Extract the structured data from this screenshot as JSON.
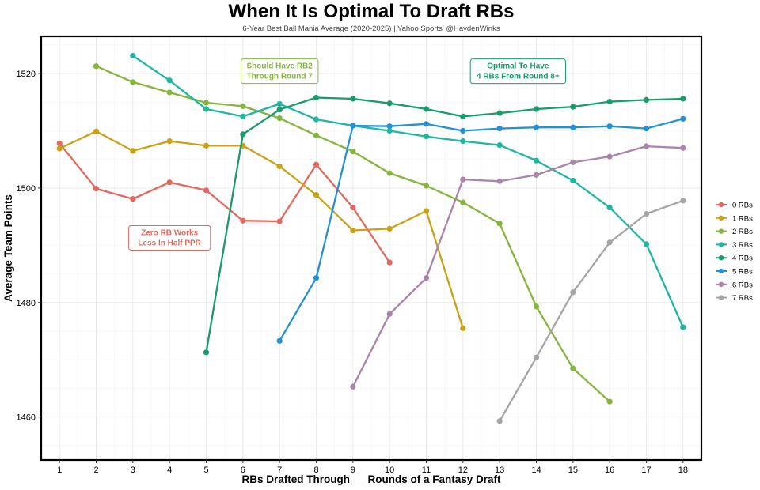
{
  "chart_data": {
    "type": "line",
    "title": "When It Is Optimal To Draft RBs",
    "subtitle": "6-Year Best Ball Mania Average (2020-2025) | Yahoo Sports' @HaydenWinks",
    "xlabel": "RBs Drafted Through __ Rounds of a Fantasy Draft",
    "ylabel": "Average Team Points",
    "xlim": [
      0.5,
      18.5
    ],
    "ylim": [
      1452.5,
      1526.5
    ],
    "x_ticks": [
      1,
      2,
      3,
      4,
      5,
      6,
      7,
      8,
      9,
      10,
      11,
      12,
      13,
      14,
      15,
      16,
      17,
      18
    ],
    "y_ticks": [
      1460,
      1480,
      1500,
      1520
    ],
    "grid": true,
    "legend_position": "right",
    "series": [
      {
        "name": "0 RBs",
        "color": "#e3685e",
        "x": [
          1,
          2,
          3,
          4,
          5,
          6,
          7,
          8,
          9,
          10
        ],
        "values": [
          1507.8,
          1499.9,
          1498.1,
          1501.0,
          1499.6,
          1494.3,
          1494.2,
          1504.1,
          1496.6,
          1487.0
        ]
      },
      {
        "name": "1 RBs",
        "color": "#c9a217",
        "x": [
          1,
          2,
          3,
          4,
          5,
          6,
          7,
          8,
          9,
          10,
          11,
          12
        ],
        "values": [
          1506.9,
          1509.9,
          1506.5,
          1508.2,
          1507.4,
          1507.4,
          1503.8,
          1498.8,
          1492.6,
          1492.9,
          1496.0,
          1475.5
        ]
      },
      {
        "name": "2 RBs",
        "color": "#86b53e",
        "x": [
          2,
          3,
          4,
          5,
          6,
          7,
          8,
          9,
          10,
          11,
          12,
          13,
          14,
          15,
          16
        ],
        "values": [
          1521.3,
          1518.5,
          1516.7,
          1514.9,
          1514.3,
          1512.2,
          1509.2,
          1506.4,
          1502.6,
          1500.4,
          1497.5,
          1493.8,
          1479.3,
          1468.5,
          1462.7
        ]
      },
      {
        "name": "3 RBs",
        "color": "#1fb7a0",
        "x": [
          3,
          4,
          5,
          6,
          7,
          8,
          9,
          10,
          11,
          12,
          13,
          14,
          15,
          16,
          17,
          18
        ],
        "values": [
          1523.1,
          1518.8,
          1513.8,
          1512.5,
          1514.7,
          1512.0,
          1510.9,
          1510.0,
          1509.0,
          1508.2,
          1507.5,
          1504.8,
          1501.3,
          1496.6,
          1490.2,
          1475.7
        ]
      },
      {
        "name": "4 RBs",
        "color": "#179c6a",
        "x": [
          5,
          6,
          7,
          8,
          9,
          10,
          11,
          12,
          13,
          14,
          15,
          16,
          17,
          18
        ],
        "values": [
          1471.3,
          1509.4,
          1513.7,
          1515.8,
          1515.6,
          1514.8,
          1513.8,
          1512.5,
          1513.1,
          1513.8,
          1514.2,
          1515.1,
          1515.4,
          1515.6
        ]
      },
      {
        "name": "5 RBs",
        "color": "#2691d0",
        "x": [
          7,
          8,
          9,
          10,
          11,
          12,
          13,
          14,
          15,
          16,
          17,
          18
        ],
        "values": [
          1473.3,
          1484.3,
          1510.9,
          1510.8,
          1511.2,
          1510.0,
          1510.4,
          1510.6,
          1510.6,
          1510.8,
          1510.4,
          1512.1
        ]
      },
      {
        "name": "6 RBs",
        "color": "#ab84a9",
        "x": [
          9,
          10,
          11,
          12,
          13,
          14,
          15,
          16,
          17,
          18
        ],
        "values": [
          1465.3,
          1478.0,
          1484.3,
          1501.5,
          1501.2,
          1502.3,
          1504.5,
          1505.5,
          1507.3,
          1507.0
        ]
      },
      {
        "name": "7 RBs",
        "color": "#a5a5a5",
        "x": [
          13,
          14,
          15,
          16,
          17,
          18
        ],
        "values": [
          1459.3,
          1470.4,
          1481.8,
          1490.5,
          1495.5,
          1497.8
        ]
      }
    ],
    "annotations": [
      {
        "id": "rb2",
        "lines": [
          "Should Have RB2",
          "Through Round 7"
        ],
        "x": 7,
        "y": 1520.4,
        "color": "#86b53e"
      },
      {
        "id": "optimal",
        "lines": [
          "Optimal To Have",
          "4 RBs From Round 8+"
        ],
        "x": 13.5,
        "y": 1520.4,
        "color": "#179c6a"
      },
      {
        "id": "zero",
        "lines": [
          "Zero RB Works",
          "Less In Half PPR"
        ],
        "x": 4,
        "y": 1491.3,
        "color": "#e3685e"
      }
    ]
  }
}
